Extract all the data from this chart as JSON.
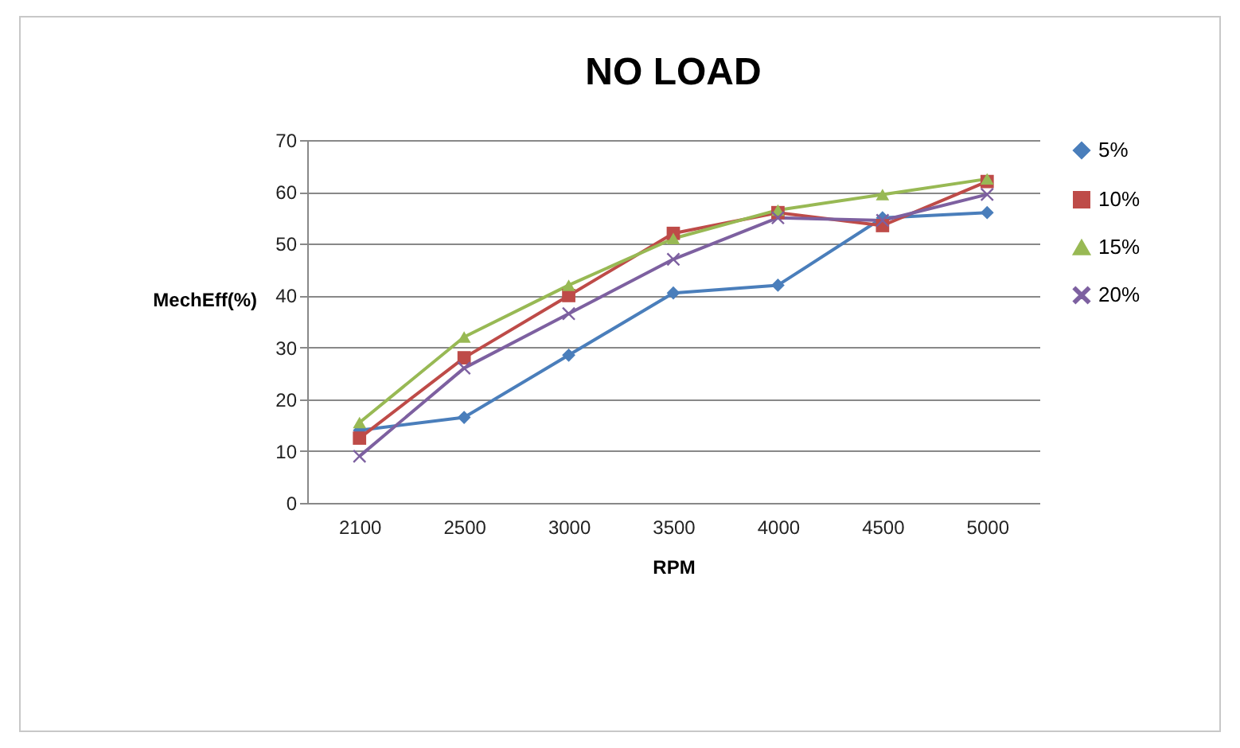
{
  "chart_data": {
    "type": "line",
    "title": "NO LOAD",
    "xlabel": "RPM",
    "ylabel": "MechEff(%)",
    "categories": [
      "2100",
      "2500",
      "3000",
      "3500",
      "4000",
      "4500",
      "5000"
    ],
    "ylim": [
      0,
      70
    ],
    "yticks": [
      0,
      10,
      20,
      30,
      40,
      50,
      60,
      70
    ],
    "grid": "y",
    "legend": "right",
    "series": [
      {
        "name": "5%",
        "color": "#4a7ebb",
        "marker": "diamond",
        "values": [
          14,
          16.5,
          28.5,
          40.5,
          42,
          55,
          56
        ]
      },
      {
        "name": "10%",
        "color": "#be4b48",
        "marker": "square",
        "values": [
          12.5,
          28,
          40,
          52,
          56,
          53.5,
          62
        ]
      },
      {
        "name": "15%",
        "color": "#98b954",
        "marker": "triangle",
        "values": [
          15.5,
          32,
          42,
          51,
          56.5,
          59.5,
          62.5
        ]
      },
      {
        "name": "20%",
        "color": "#7d60a0",
        "marker": "cross",
        "values": [
          9,
          26,
          36.5,
          47,
          55,
          54.5,
          59.5
        ]
      }
    ]
  }
}
